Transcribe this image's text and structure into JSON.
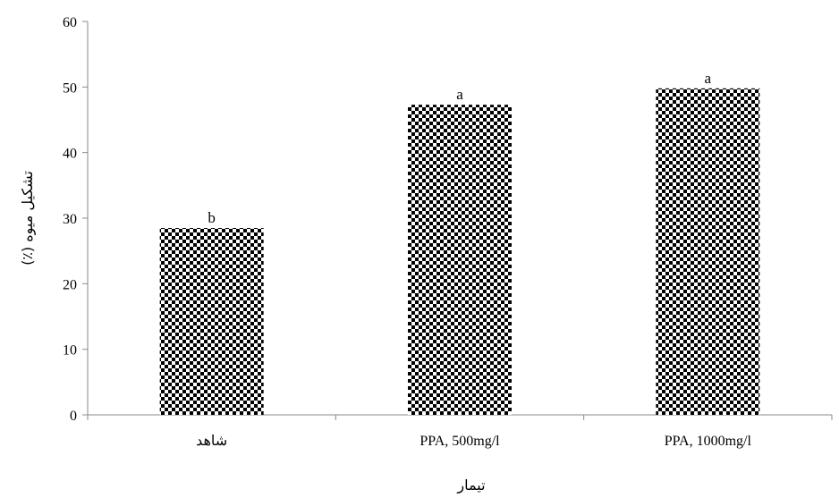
{
  "chart_data": {
    "type": "bar",
    "categories": [
      "شاهد",
      "PPA, 500mg/l",
      "PPA, 1000mg/l"
    ],
    "values": [
      28.5,
      47.3,
      49.8
    ],
    "data_labels": [
      "b",
      "a",
      "a"
    ],
    "xlabel": "تیمار",
    "ylabel": "تشکیل میوه (٪)",
    "ylim": [
      0,
      60
    ],
    "yticks": [
      0,
      10,
      20,
      30,
      40,
      50,
      60
    ],
    "grid": false,
    "bar_fill": "checkerboard",
    "colors": {
      "bar_dark": "#000000",
      "bar_light": "#ffffff",
      "axis": "#888888"
    }
  }
}
